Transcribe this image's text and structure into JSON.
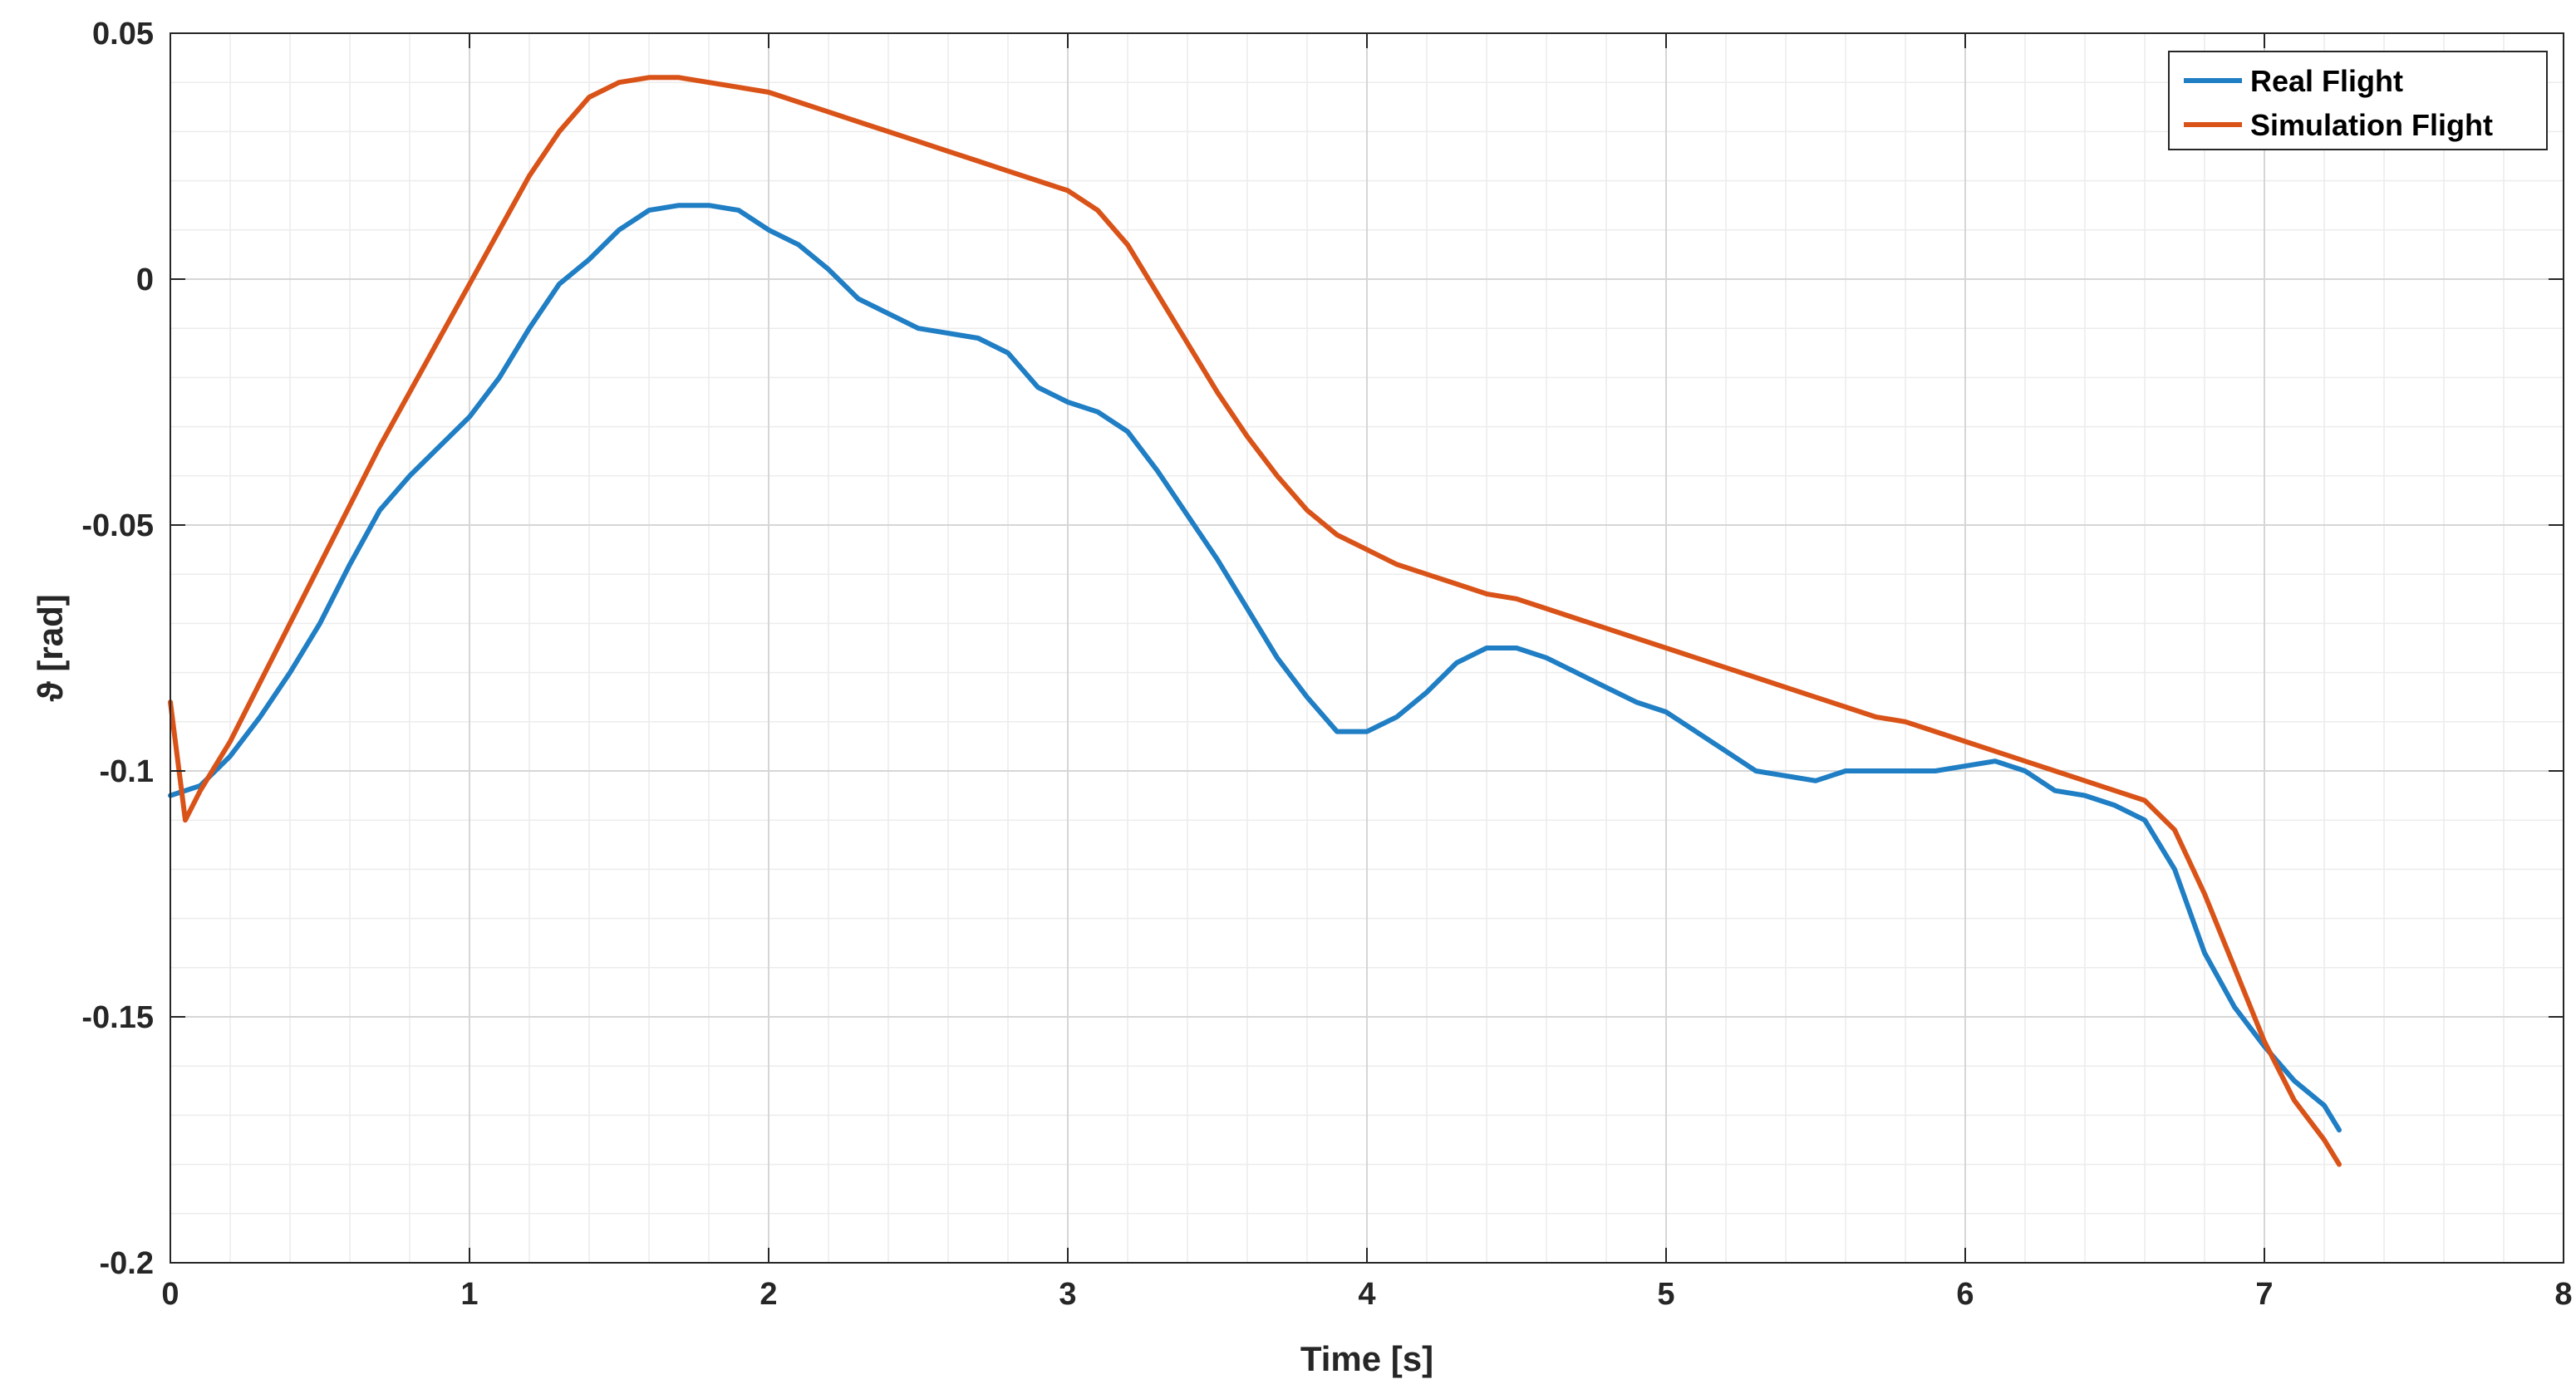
{
  "chart_data": {
    "type": "line",
    "title": "",
    "xlabel": "Time [s]",
    "ylabel": "ϑ [rad]",
    "xlim": [
      0,
      8
    ],
    "ylim": [
      -0.2,
      0.05
    ],
    "x_ticks": [
      0,
      1,
      2,
      3,
      4,
      5,
      6,
      7,
      8
    ],
    "x_tick_labels": [
      "0",
      "1",
      "2",
      "3",
      "4",
      "5",
      "6",
      "7",
      "8"
    ],
    "y_ticks": [
      0.05,
      0,
      -0.05,
      -0.1,
      -0.15,
      -0.2
    ],
    "y_tick_labels": [
      "0.05",
      "0",
      "-0.05",
      "-0.1",
      "-0.15",
      "-0.2"
    ],
    "grid": true,
    "minor_grid": true,
    "legend_position": "top-right",
    "series": [
      {
        "name": "Real Flight",
        "color": "#1f7ec4",
        "x": [
          0,
          0.1,
          0.2,
          0.3,
          0.4,
          0.5,
          0.6,
          0.7,
          0.8,
          0.9,
          1.0,
          1.1,
          1.2,
          1.3,
          1.4,
          1.5,
          1.6,
          1.7,
          1.8,
          1.9,
          2.0,
          2.1,
          2.2,
          2.3,
          2.4,
          2.5,
          2.6,
          2.7,
          2.8,
          2.9,
          3.0,
          3.1,
          3.2,
          3.3,
          3.4,
          3.5,
          3.6,
          3.7,
          3.8,
          3.9,
          4.0,
          4.1,
          4.2,
          4.3,
          4.4,
          4.5,
          4.6,
          4.7,
          4.8,
          4.9,
          5.0,
          5.1,
          5.2,
          5.3,
          5.4,
          5.5,
          5.6,
          5.7,
          5.8,
          5.9,
          6.0,
          6.1,
          6.2,
          6.3,
          6.4,
          6.5,
          6.6,
          6.7,
          6.8,
          6.9,
          7.0,
          7.1,
          7.2,
          7.25
        ],
        "y": [
          -0.105,
          -0.103,
          -0.097,
          -0.089,
          -0.08,
          -0.07,
          -0.058,
          -0.047,
          -0.04,
          -0.034,
          -0.028,
          -0.02,
          -0.01,
          -0.001,
          0.004,
          0.01,
          0.014,
          0.015,
          0.015,
          0.014,
          0.01,
          0.007,
          0.002,
          -0.004,
          -0.007,
          -0.01,
          -0.011,
          -0.012,
          -0.015,
          -0.022,
          -0.025,
          -0.027,
          -0.031,
          -0.039,
          -0.048,
          -0.057,
          -0.067,
          -0.077,
          -0.085,
          -0.092,
          -0.092,
          -0.089,
          -0.084,
          -0.078,
          -0.075,
          -0.075,
          -0.077,
          -0.08,
          -0.083,
          -0.086,
          -0.088,
          -0.092,
          -0.096,
          -0.1,
          -0.101,
          -0.102,
          -0.1,
          -0.1,
          -0.1,
          -0.1,
          -0.099,
          -0.098,
          -0.1,
          -0.104,
          -0.105,
          -0.107,
          -0.11,
          -0.12,
          -0.137,
          -0.148,
          -0.156,
          -0.163,
          -0.168,
          -0.173
        ]
      },
      {
        "name": "Simulation Flight",
        "color": "#d95319",
        "x": [
          0,
          0.05,
          0.1,
          0.2,
          0.3,
          0.4,
          0.5,
          0.6,
          0.7,
          0.8,
          0.9,
          1.0,
          1.1,
          1.2,
          1.3,
          1.4,
          1.5,
          1.6,
          1.7,
          1.8,
          1.9,
          2.0,
          2.1,
          2.2,
          2.3,
          2.4,
          2.5,
          2.6,
          2.7,
          2.8,
          2.9,
          3.0,
          3.1,
          3.2,
          3.3,
          3.4,
          3.5,
          3.6,
          3.7,
          3.8,
          3.9,
          4.0,
          4.1,
          4.2,
          4.3,
          4.4,
          4.5,
          4.6,
          4.7,
          4.8,
          4.9,
          5.0,
          5.1,
          5.2,
          5.3,
          5.4,
          5.5,
          5.6,
          5.7,
          5.8,
          5.9,
          6.0,
          6.1,
          6.2,
          6.3,
          6.4,
          6.5,
          6.6,
          6.7,
          6.8,
          6.9,
          7.0,
          7.1,
          7.2,
          7.25
        ],
        "y": [
          -0.086,
          -0.11,
          -0.104,
          -0.094,
          -0.082,
          -0.07,
          -0.058,
          -0.046,
          -0.034,
          -0.023,
          -0.012,
          -0.001,
          0.01,
          0.021,
          0.03,
          0.037,
          0.04,
          0.041,
          0.041,
          0.04,
          0.039,
          0.038,
          0.036,
          0.034,
          0.032,
          0.03,
          0.028,
          0.026,
          0.024,
          0.022,
          0.02,
          0.018,
          0.014,
          0.007,
          -0.003,
          -0.013,
          -0.023,
          -0.032,
          -0.04,
          -0.047,
          -0.052,
          -0.055,
          -0.058,
          -0.06,
          -0.062,
          -0.064,
          -0.065,
          -0.067,
          -0.069,
          -0.071,
          -0.073,
          -0.075,
          -0.077,
          -0.079,
          -0.081,
          -0.083,
          -0.085,
          -0.087,
          -0.089,
          -0.09,
          -0.092,
          -0.094,
          -0.096,
          -0.098,
          -0.1,
          -0.102,
          -0.104,
          -0.106,
          -0.112,
          -0.125,
          -0.14,
          -0.155,
          -0.167,
          -0.175,
          -0.18
        ]
      }
    ]
  }
}
